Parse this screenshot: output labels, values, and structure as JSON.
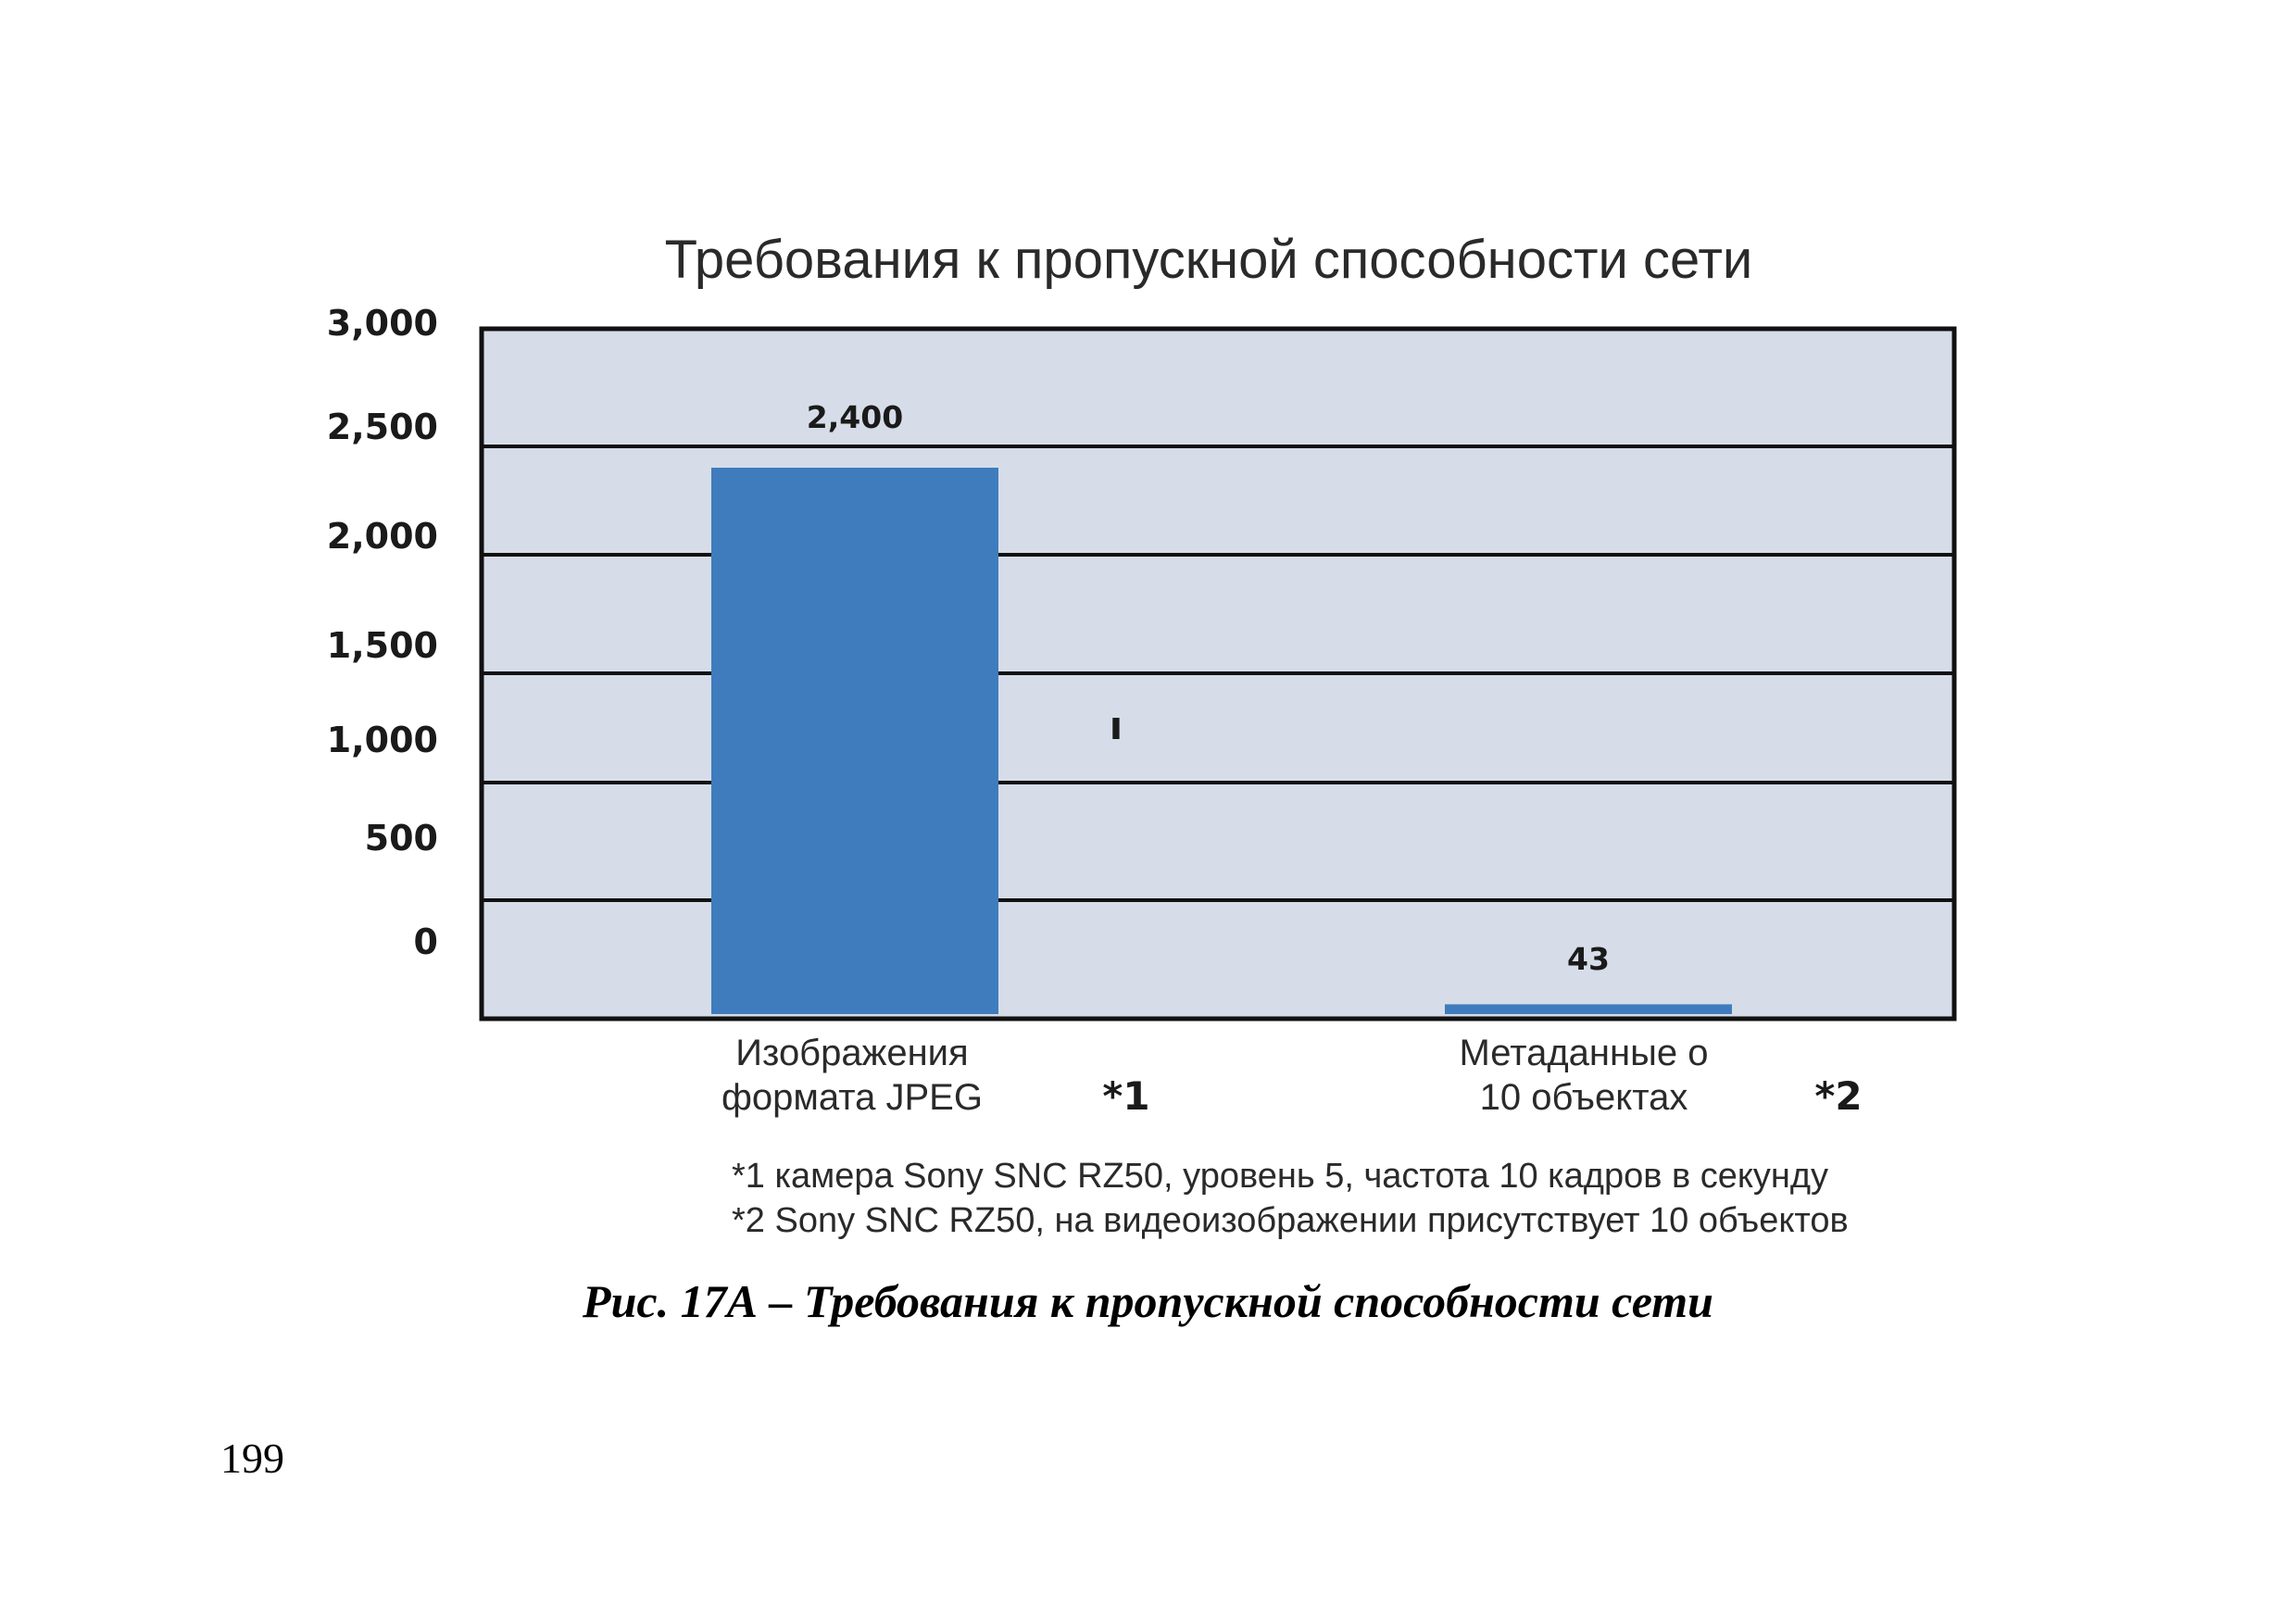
{
  "chart_data": {
    "type": "bar",
    "title": "Требования к пропускной способности сети",
    "categories": [
      [
        "Изображения",
        "формата JPEG"
      ],
      [
        "Метаданные о",
        "10 объектах"
      ]
    ],
    "category_markers": [
      "*1",
      "*2"
    ],
    "values": [
      2400,
      43
    ],
    "value_labels": [
      "2,400",
      "43"
    ],
    "yticks": [
      "3,000",
      "2,500",
      "2,000",
      "1,500",
      "1,000",
      "500",
      "0"
    ],
    "ylim": [
      0,
      3000
    ],
    "grid": true,
    "bar_color": "#3f7cbd",
    "plot_background": "#d6dde9",
    "footnotes": [
      "*1 камера Sony SNC RZ50, уровень 5, частота 10 кадров в секунду",
      "*2 Sony SNC RZ50, на видеоизображении присутствует 10 объектов"
    ]
  },
  "figure_caption": "Рис. 17А – Требования к пропускной способности сети",
  "page_number": "199"
}
